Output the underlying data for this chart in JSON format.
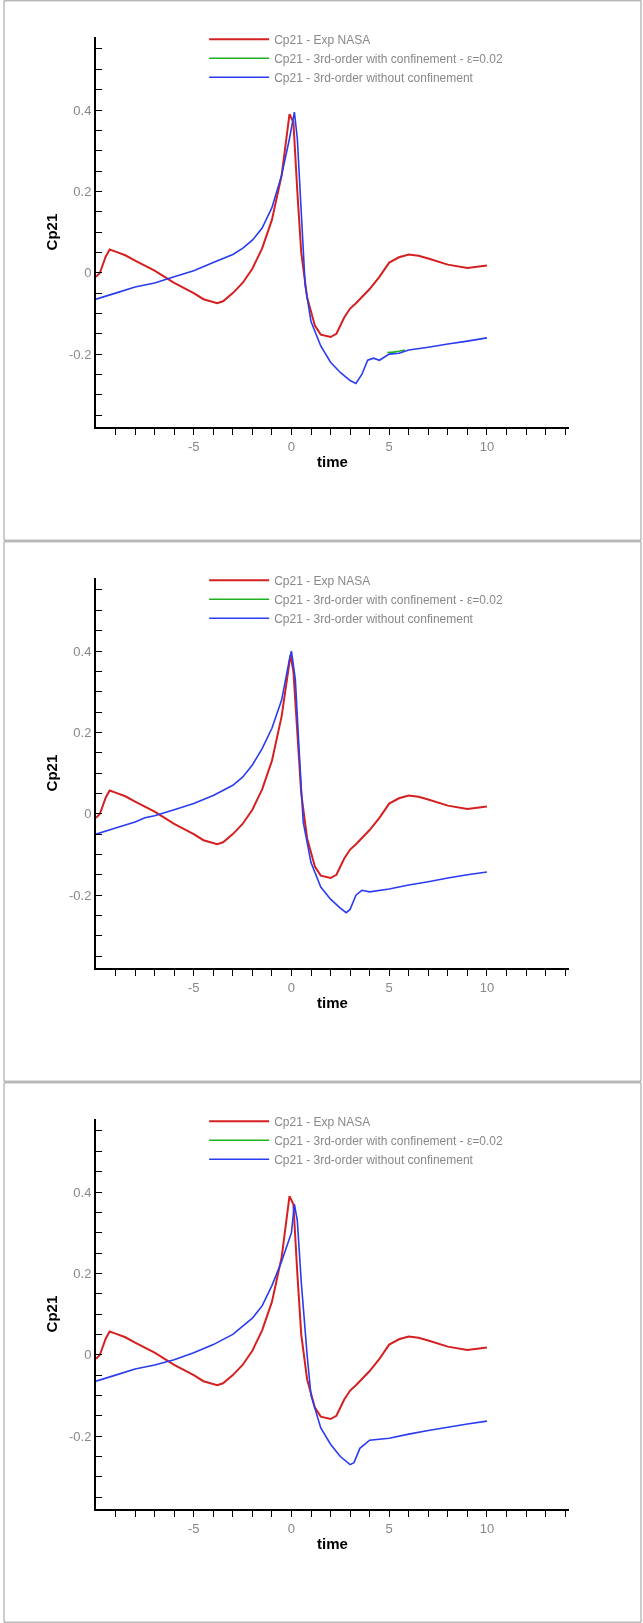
{
  "chart_data": [
    {
      "type": "line",
      "xlabel": "time",
      "ylabel": "Cp21",
      "xlim": [
        -10,
        14.2
      ],
      "ylim": [
        -0.38,
        0.58
      ],
      "legend": "top",
      "grid": false,
      "marker": "none",
      "line_style": "solid",
      "xticks": [
        {
          "value": -9,
          "label": null
        },
        {
          "value": -8,
          "label": null
        },
        {
          "value": -7,
          "label": null
        },
        {
          "value": -6,
          "label": null
        },
        -5,
        {
          "value": -4,
          "label": null
        },
        {
          "value": -3,
          "label": null
        },
        {
          "value": -2,
          "label": null
        },
        {
          "value": -1,
          "label": null
        },
        0,
        {
          "value": 1,
          "label": null
        },
        {
          "value": 2,
          "label": null
        },
        {
          "value": 3,
          "label": null
        },
        {
          "value": 4,
          "label": null
        },
        5,
        {
          "value": 6,
          "label": null
        },
        {
          "value": 7,
          "label": null
        },
        {
          "value": 8,
          "label": null
        },
        {
          "value": 9,
          "label": null
        },
        10,
        {
          "value": 11,
          "label": null
        },
        {
          "value": 12,
          "label": null
        },
        {
          "value": 13,
          "label": null
        },
        {
          "value": 14,
          "label": null
        }
      ],
      "yticks": [
        {
          "value": -0.35,
          "label": null
        },
        {
          "value": -0.3,
          "label": null
        },
        {
          "value": -0.25,
          "label": null
        },
        -0.2,
        {
          "value": -0.15,
          "label": null
        },
        {
          "value": -0.1,
          "label": null
        },
        {
          "value": -0.05,
          "label": null
        },
        0,
        {
          "value": 0.05,
          "label": null
        },
        {
          "value": 0.1,
          "label": null
        },
        {
          "value": 0.15,
          "label": null
        },
        0.2,
        {
          "value": 0.25,
          "label": null
        },
        {
          "value": 0.3,
          "label": null
        },
        {
          "value": 0.35,
          "label": null
        },
        0.4,
        {
          "value": 0.45,
          "label": null
        },
        {
          "value": 0.5,
          "label": null
        },
        {
          "value": 0.55,
          "label": null
        }
      ],
      "series": [
        {
          "name": "Cp21 - Exp NASA",
          "color": "#d42020",
          "x": [
            -10,
            -9.8,
            -9.5,
            -9.3,
            -9,
            -8.5,
            -8,
            -7,
            -6,
            -5,
            -4.5,
            -3.8,
            -3.5,
            -3,
            -2.5,
            -2,
            -1.5,
            -1,
            -0.5,
            -0.1,
            0.1,
            0.3,
            0.5,
            0.8,
            1.2,
            1.5,
            2,
            2.3,
            2.7,
            3,
            3.3,
            4,
            4.5,
            5,
            5.5,
            6,
            6.5,
            7,
            8,
            9,
            10
          ],
          "values": [
            -0.01,
            0.0,
            0.04,
            0.057,
            0.052,
            0.043,
            0.03,
            0.005,
            -0.025,
            -0.05,
            -0.065,
            -0.075,
            -0.07,
            -0.05,
            -0.025,
            0.01,
            0.06,
            0.13,
            0.24,
            0.39,
            0.37,
            0.2,
            0.05,
            -0.06,
            -0.13,
            -0.152,
            -0.158,
            -0.15,
            -0.11,
            -0.088,
            -0.075,
            -0.04,
            -0.01,
            0.025,
            0.038,
            0.045,
            0.042,
            0.035,
            0.02,
            0.012,
            0.018
          ]
        },
        {
          "name": "Cp21 - 3rd-order with confinement - ε=0.02",
          "color": "#1fb01f",
          "x": [
            4.9,
            5.2,
            5.5,
            5.8
          ],
          "values": [
            -0.196,
            -0.195,
            -0.193,
            -0.19
          ]
        },
        {
          "name": "Cp21 - 3rd-order without confinement",
          "color": "#2a3cf0",
          "x": [
            -10,
            -9,
            -8,
            -7,
            -6,
            -5,
            -4,
            -3,
            -2.5,
            -2,
            -1.5,
            -1,
            -0.5,
            -0.1,
            0.15,
            0.3,
            0.5,
            0.7,
            1,
            1.5,
            2,
            2.5,
            3,
            3.3,
            3.6,
            3.9,
            4.2,
            4.5,
            5,
            5.5,
            6,
            7,
            8,
            9,
            10
          ],
          "values": [
            -0.065,
            -0.05,
            -0.035,
            -0.025,
            -0.01,
            0.005,
            0.025,
            0.045,
            0.06,
            0.08,
            0.11,
            0.16,
            0.24,
            0.33,
            0.395,
            0.33,
            0.15,
            -0.03,
            -0.12,
            -0.18,
            -0.22,
            -0.245,
            -0.265,
            -0.272,
            -0.25,
            -0.215,
            -0.21,
            -0.215,
            -0.2,
            -0.198,
            -0.19,
            -0.183,
            -0.175,
            -0.168,
            -0.16
          ]
        }
      ]
    },
    {
      "type": "line",
      "xlabel": "time",
      "ylabel": "Cp21",
      "xlim": [
        -10,
        14.2
      ],
      "ylim": [
        -0.38,
        0.58
      ],
      "legend": "top",
      "grid": false,
      "marker": "none",
      "line_style": "solid",
      "xticks": [
        {
          "value": -9,
          "label": null
        },
        {
          "value": -8,
          "label": null
        },
        {
          "value": -7,
          "label": null
        },
        {
          "value": -6,
          "label": null
        },
        -5,
        {
          "value": -4,
          "label": null
        },
        {
          "value": -3,
          "label": null
        },
        {
          "value": -2,
          "label": null
        },
        {
          "value": -1,
          "label": null
        },
        0,
        {
          "value": 1,
          "label": null
        },
        {
          "value": 2,
          "label": null
        },
        {
          "value": 3,
          "label": null
        },
        {
          "value": 4,
          "label": null
        },
        5,
        {
          "value": 6,
          "label": null
        },
        {
          "value": 7,
          "label": null
        },
        {
          "value": 8,
          "label": null
        },
        {
          "value": 9,
          "label": null
        },
        10,
        {
          "value": 11,
          "label": null
        },
        {
          "value": 12,
          "label": null
        },
        {
          "value": 13,
          "label": null
        },
        {
          "value": 14,
          "label": null
        }
      ],
      "yticks": [
        {
          "value": -0.35,
          "label": null
        },
        {
          "value": -0.3,
          "label": null
        },
        {
          "value": -0.25,
          "label": null
        },
        -0.2,
        {
          "value": -0.15,
          "label": null
        },
        {
          "value": -0.1,
          "label": null
        },
        {
          "value": -0.05,
          "label": null
        },
        0,
        {
          "value": 0.05,
          "label": null
        },
        {
          "value": 0.1,
          "label": null
        },
        {
          "value": 0.15,
          "label": null
        },
        0.2,
        {
          "value": 0.25,
          "label": null
        },
        {
          "value": 0.3,
          "label": null
        },
        {
          "value": 0.35,
          "label": null
        },
        0.4,
        {
          "value": 0.45,
          "label": null
        },
        {
          "value": 0.5,
          "label": null
        },
        {
          "value": 0.55,
          "label": null
        }
      ],
      "series": [
        {
          "name": "Cp21 - Exp NASA",
          "color": "#d42020",
          "x": [
            -10,
            -9.8,
            -9.5,
            -9.3,
            -9,
            -8.5,
            -8,
            -7,
            -6,
            -5,
            -4.5,
            -3.8,
            -3.5,
            -3,
            -2.5,
            -2,
            -1.5,
            -1,
            -0.5,
            -0.05,
            0.1,
            0.3,
            0.5,
            0.8,
            1.2,
            1.5,
            2,
            2.3,
            2.7,
            3,
            3.3,
            4,
            4.5,
            5,
            5.5,
            6,
            6.5,
            7,
            8,
            9,
            10
          ],
          "values": [
            -0.01,
            0.0,
            0.04,
            0.057,
            0.052,
            0.043,
            0.03,
            0.005,
            -0.025,
            -0.05,
            -0.065,
            -0.075,
            -0.07,
            -0.05,
            -0.025,
            0.01,
            0.06,
            0.13,
            0.24,
            0.39,
            0.35,
            0.2,
            0.05,
            -0.06,
            -0.13,
            -0.152,
            -0.158,
            -0.15,
            -0.11,
            -0.088,
            -0.075,
            -0.04,
            -0.01,
            0.025,
            0.038,
            0.045,
            0.042,
            0.035,
            0.02,
            0.012,
            0.018
          ]
        },
        {
          "name": "Cp21 - 3rd-order with confinement - ε=0.02",
          "color": "#1fb01f",
          "type": "line"
        },
        {
          "name": "Cp21 - 3rd-order without confinement",
          "color": "#2a3cf0",
          "x": [
            -10,
            -9,
            -8,
            -7.5,
            -7,
            -6,
            -5,
            -4,
            -3,
            -2.5,
            -2,
            -1.5,
            -1,
            -0.5,
            -0.1,
            0,
            0.2,
            0.4,
            0.6,
            1,
            1.5,
            2,
            2.5,
            2.8,
            3,
            3.3,
            3.6,
            4,
            5,
            6,
            7,
            8,
            9,
            10
          ],
          "values": [
            -0.05,
            -0.035,
            -0.02,
            -0.01,
            -0.005,
            0.01,
            0.025,
            0.045,
            0.07,
            0.09,
            0.12,
            0.16,
            0.21,
            0.28,
            0.38,
            0.4,
            0.33,
            0.15,
            -0.02,
            -0.12,
            -0.18,
            -0.21,
            -0.232,
            -0.243,
            -0.235,
            -0.2,
            -0.188,
            -0.192,
            -0.185,
            -0.175,
            -0.167,
            -0.158,
            -0.15,
            -0.143
          ]
        }
      ]
    },
    {
      "type": "line",
      "xlabel": "time",
      "ylabel": "Cp21",
      "xlim": [
        -10,
        14.2
      ],
      "ylim": [
        -0.38,
        0.58
      ],
      "legend": "top",
      "grid": false,
      "marker": "none",
      "line_style": "solid",
      "xticks": [
        {
          "value": -9,
          "label": null
        },
        {
          "value": -8,
          "label": null
        },
        {
          "value": -7,
          "label": null
        },
        {
          "value": -6,
          "label": null
        },
        -5,
        {
          "value": -4,
          "label": null
        },
        {
          "value": -3,
          "label": null
        },
        {
          "value": -2,
          "label": null
        },
        {
          "value": -1,
          "label": null
        },
        0,
        {
          "value": 1,
          "label": null
        },
        {
          "value": 2,
          "label": null
        },
        {
          "value": 3,
          "label": null
        },
        {
          "value": 4,
          "label": null
        },
        5,
        {
          "value": 6,
          "label": null
        },
        {
          "value": 7,
          "label": null
        },
        {
          "value": 8,
          "label": null
        },
        {
          "value": 9,
          "label": null
        },
        10,
        {
          "value": 11,
          "label": null
        },
        {
          "value": 12,
          "label": null
        },
        {
          "value": 13,
          "label": null
        },
        {
          "value": 14,
          "label": null
        }
      ],
      "yticks": [
        {
          "value": -0.35,
          "label": null
        },
        {
          "value": -0.3,
          "label": null
        },
        {
          "value": -0.25,
          "label": null
        },
        -0.2,
        {
          "value": -0.15,
          "label": null
        },
        {
          "value": -0.1,
          "label": null
        },
        {
          "value": -0.05,
          "label": null
        },
        0,
        {
          "value": 0.05,
          "label": null
        },
        {
          "value": 0.1,
          "label": null
        },
        {
          "value": 0.15,
          "label": null
        },
        0.2,
        {
          "value": 0.25,
          "label": null
        },
        {
          "value": 0.3,
          "label": null
        },
        {
          "value": 0.35,
          "label": null
        },
        0.4,
        {
          "value": 0.45,
          "label": null
        },
        {
          "value": 0.5,
          "label": null
        },
        {
          "value": 0.55,
          "label": null
        }
      ],
      "series": [
        {
          "name": "Cp21 - Exp NASA",
          "color": "#d42020",
          "x": [
            -10,
            -9.8,
            -9.5,
            -9.3,
            -9,
            -8.5,
            -8,
            -7,
            -6,
            -5,
            -4.5,
            -3.8,
            -3.5,
            -3,
            -2.5,
            -2,
            -1.5,
            -1,
            -0.5,
            -0.1,
            0.1,
            0.3,
            0.5,
            0.8,
            1.2,
            1.5,
            2,
            2.3,
            2.7,
            3,
            3.3,
            4,
            4.5,
            5,
            5.5,
            6,
            6.5,
            7,
            8,
            9,
            10
          ],
          "values": [
            -0.01,
            0.0,
            0.04,
            0.057,
            0.052,
            0.043,
            0.03,
            0.005,
            -0.025,
            -0.05,
            -0.065,
            -0.075,
            -0.07,
            -0.05,
            -0.025,
            0.01,
            0.06,
            0.13,
            0.24,
            0.39,
            0.37,
            0.2,
            0.05,
            -0.06,
            -0.13,
            -0.152,
            -0.158,
            -0.15,
            -0.11,
            -0.088,
            -0.075,
            -0.04,
            -0.01,
            0.025,
            0.038,
            0.045,
            0.042,
            0.035,
            0.02,
            0.012,
            0.018
          ]
        },
        {
          "name": "Cp21 - 3rd-order with confinement - ε=0.02",
          "color": "#1fb01f",
          "type": "line"
        },
        {
          "name": "Cp21 - 3rd-order without confinement",
          "color": "#2a3cf0",
          "x": [
            -10,
            -9,
            -8,
            -7,
            -6,
            -5,
            -4,
            -3,
            -2,
            -1.5,
            -1,
            -0.5,
            0,
            0.15,
            0.3,
            0.5,
            0.8,
            1,
            1.5,
            2,
            2.5,
            3,
            3.2,
            3.5,
            4,
            5,
            6,
            7,
            8,
            9,
            10
          ],
          "values": [
            -0.065,
            -0.05,
            -0.035,
            -0.025,
            -0.012,
            0.005,
            0.025,
            0.05,
            0.09,
            0.12,
            0.17,
            0.23,
            0.3,
            0.37,
            0.33,
            0.18,
            0.0,
            -0.1,
            -0.18,
            -0.22,
            -0.25,
            -0.27,
            -0.265,
            -0.23,
            -0.21,
            -0.205,
            -0.195,
            -0.186,
            -0.178,
            -0.17,
            -0.163
          ]
        }
      ]
    }
  ]
}
